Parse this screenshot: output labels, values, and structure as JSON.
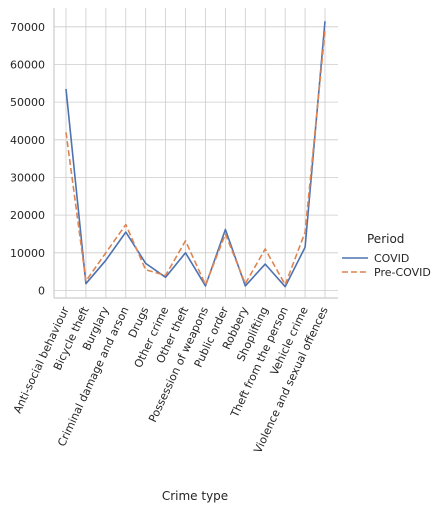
{
  "chart_data": {
    "type": "line",
    "xlabel": "Crime type",
    "ylabel": "",
    "ylim": [
      -2000,
      75000
    ],
    "yticks": [
      0,
      10000,
      20000,
      30000,
      40000,
      50000,
      60000,
      70000
    ],
    "ytick_labels": [
      "0",
      "10000",
      "20000",
      "30000",
      "40000",
      "50000",
      "60000",
      "70000"
    ],
    "grid": true,
    "legend_position": "right",
    "legend_title": "Period",
    "categories": [
      "Anti-social behaviour",
      "Bicycle theft",
      "Burglary",
      "Criminal damage and arson",
      "Drugs",
      "Other crime",
      "Other theft",
      "Possession of weapons",
      "Public order",
      "Robbery",
      "Shoplifting",
      "Theft from the person",
      "Vehicle crime",
      "Violence and sexual offences"
    ],
    "series": [
      {
        "name": "COVID",
        "color": "#4c72b0",
        "dash": "solid",
        "values": [
          53500,
          1800,
          8000,
          15500,
          7200,
          3500,
          10000,
          1200,
          16200,
          1200,
          7000,
          1000,
          11500,
          71500
        ]
      },
      {
        "name": "Pre-COVID",
        "color": "#dd8452",
        "dash": "dashed",
        "values": [
          42000,
          2500,
          10000,
          17500,
          5500,
          4000,
          13200,
          1500,
          15000,
          1800,
          11000,
          1500,
          15500,
          69000
        ]
      }
    ]
  }
}
